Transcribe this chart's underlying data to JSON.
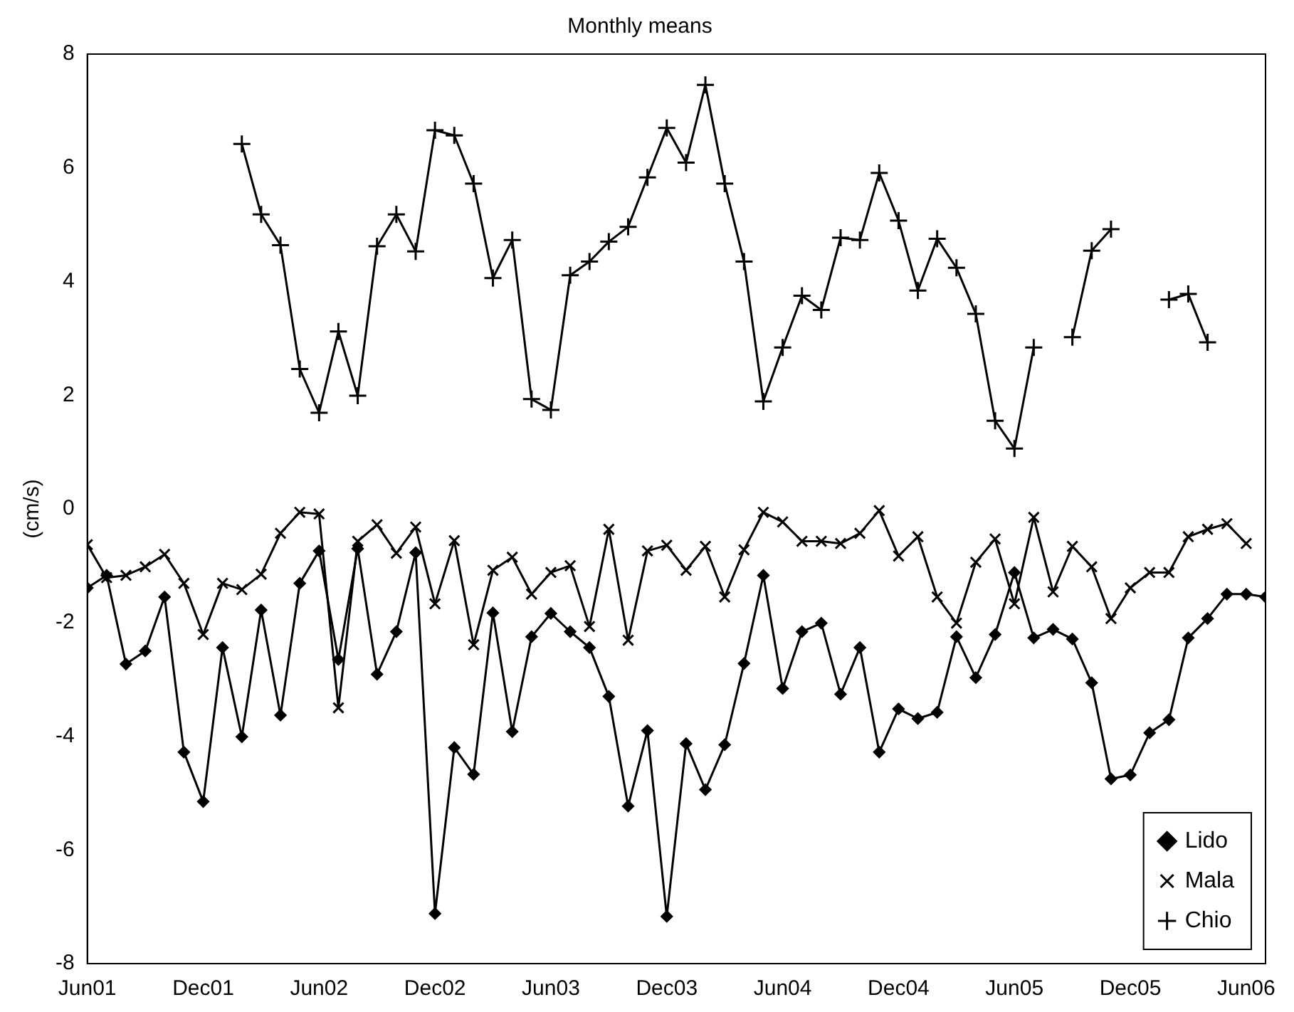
{
  "chart_data": {
    "type": "line",
    "title": "Monthly means",
    "ylabel": "(cm/s)",
    "x": [
      "2001-06",
      "2001-07",
      "2001-08",
      "2001-09",
      "2001-10",
      "2001-11",
      "2001-12",
      "2002-01",
      "2002-02",
      "2002-03",
      "2002-04",
      "2002-05",
      "2002-06",
      "2002-07",
      "2002-08",
      "2002-09",
      "2002-10",
      "2002-11",
      "2002-12",
      "2003-01",
      "2003-02",
      "2003-03",
      "2003-04",
      "2003-05",
      "2003-06",
      "2003-07",
      "2003-08",
      "2003-09",
      "2003-10",
      "2003-11",
      "2003-12",
      "2004-01",
      "2004-02",
      "2004-03",
      "2004-04",
      "2004-05",
      "2004-06",
      "2004-07",
      "2004-08",
      "2004-09",
      "2004-10",
      "2004-11",
      "2004-12",
      "2005-01",
      "2005-02",
      "2005-03",
      "2005-04",
      "2005-05",
      "2005-06",
      "2005-07",
      "2005-08",
      "2005-09",
      "2005-10",
      "2005-11",
      "2005-12",
      "2006-01",
      "2006-02",
      "2006-03",
      "2006-04",
      "2006-05",
      "2006-06",
      "2006-07"
    ],
    "series": [
      {
        "name": "Lido",
        "color": "#000000",
        "marker": "diamond",
        "values": [
          -1.39,
          -1.17,
          -2.73,
          -2.5,
          -1.55,
          -4.28,
          -5.15,
          -2.44,
          -4.01,
          -1.78,
          -3.63,
          -1.31,
          -0.74,
          -2.65,
          -0.7,
          -2.91,
          -2.16,
          -0.77,
          -7.12,
          -4.2,
          -4.67,
          -1.83,
          -3.92,
          -2.25,
          -1.84,
          -2.16,
          -2.44,
          -3.3,
          -5.23,
          -3.9,
          -7.17,
          -4.13,
          -4.94,
          -4.15,
          -2.72,
          -1.17,
          -3.16,
          -2.16,
          -2.01,
          -3.26,
          -2.44,
          -4.28,
          -3.52,
          -3.69,
          -3.58,
          -2.25,
          -2.97,
          -2.21,
          -1.12,
          -2.27,
          -2.12,
          -2.29,
          -3.06,
          -4.75,
          -4.68,
          -3.94,
          -3.71,
          -2.27,
          -1.93,
          -1.5,
          -1.5,
          -1.55
        ]
      },
      {
        "name": "Mala",
        "color": "#000000",
        "marker": "x",
        "values": [
          -0.63,
          -1.21,
          -1.17,
          -1.02,
          -0.8,
          -1.31,
          -2.21,
          -1.31,
          -1.42,
          -1.15,
          -0.43,
          -0.06,
          -0.09,
          -3.5,
          -0.57,
          -0.28,
          -0.78,
          -0.32,
          -1.67,
          -0.56,
          -2.39,
          -1.08,
          -0.85,
          -1.5,
          -1.12,
          -1.0,
          -2.07,
          -0.36,
          -2.31,
          -0.74,
          -0.64,
          -1.08,
          -0.66,
          -1.55,
          -0.72,
          -0.06,
          -0.23,
          -0.57,
          -0.57,
          -0.61,
          -0.43,
          -0.03,
          -0.83,
          -0.49,
          -1.55,
          -2.01,
          -0.94,
          -0.53,
          -1.67,
          -0.15,
          -1.46,
          -0.66,
          -1.02,
          -1.93,
          -1.39,
          -1.12,
          -1.12,
          -0.49,
          -0.36,
          -0.26,
          -0.61,
          null
        ]
      },
      {
        "name": "Chio",
        "color": "#000000",
        "marker": "cross",
        "values": [
          null,
          null,
          null,
          null,
          null,
          null,
          null,
          null,
          6.42,
          5.18,
          4.64,
          2.46,
          1.69,
          3.12,
          1.99,
          4.62,
          5.18,
          4.53,
          6.66,
          6.57,
          5.72,
          4.06,
          4.73,
          1.93,
          1.74,
          4.11,
          4.35,
          4.7,
          4.96,
          5.83,
          6.7,
          6.09,
          7.46,
          5.72,
          4.35,
          1.89,
          2.84,
          3.75,
          3.5,
          4.77,
          4.73,
          5.91,
          5.07,
          3.84,
          4.75,
          4.24,
          3.43,
          1.55,
          1.06,
          2.84,
          null,
          3.02,
          4.54,
          4.92,
          null,
          null,
          3.68,
          3.78,
          2.93,
          null,
          null,
          null
        ]
      }
    ],
    "xlim": [
      "2001-06",
      "2006-07"
    ],
    "xticks": [
      {
        "value": "2001-06",
        "label": "Jun01"
      },
      {
        "value": "2001-12",
        "label": "Dec01"
      },
      {
        "value": "2002-06",
        "label": "Jun02"
      },
      {
        "value": "2002-12",
        "label": "Dec02"
      },
      {
        "value": "2003-06",
        "label": "Jun03"
      },
      {
        "value": "2003-12",
        "label": "Dec03"
      },
      {
        "value": "2004-06",
        "label": "Jun04"
      },
      {
        "value": "2004-12",
        "label": "Dec04"
      },
      {
        "value": "2005-06",
        "label": "Jun05"
      },
      {
        "value": "2005-12",
        "label": "Dec05"
      },
      {
        "value": "2006-06",
        "label": "Jun06"
      }
    ],
    "ylim": [
      -8,
      8
    ],
    "yticks": [
      -8,
      -6,
      -4,
      -2,
      0,
      2,
      4,
      6,
      8
    ],
    "grid": false,
    "legend": "bottom right",
    "line_style": "solid"
  }
}
